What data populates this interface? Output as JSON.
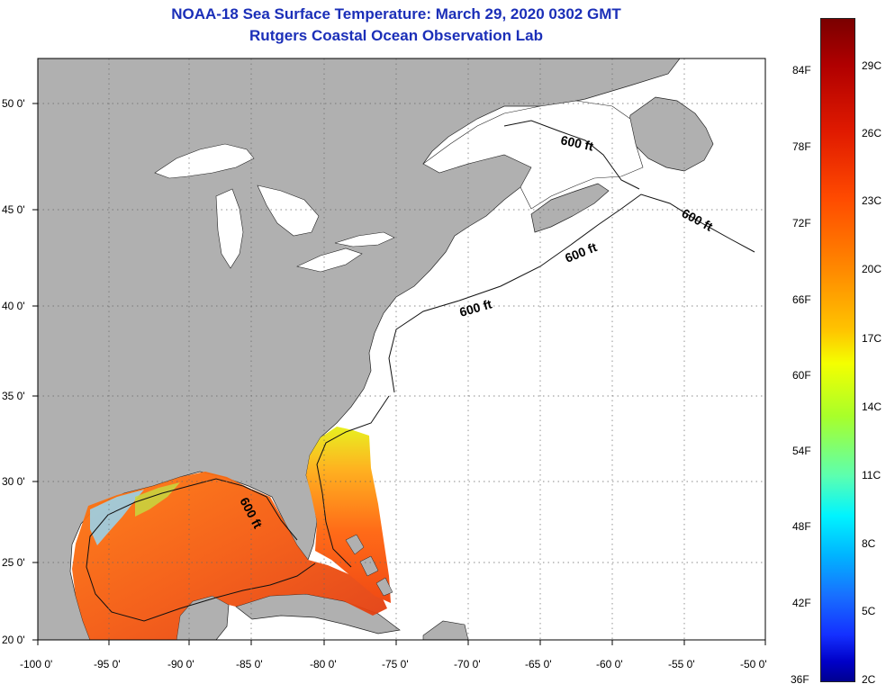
{
  "header": {
    "title": "NOAA-18 Sea Surface Temperature:  March 29, 2020 0302 GMT",
    "subtitle": "Rutgers Coastal Ocean Observation Lab"
  },
  "map": {
    "x_ticks": [
      "-100 0'",
      "-95 0'",
      "-90 0'",
      "-85 0'",
      "-80 0'",
      "-75 0'",
      "-70 0'",
      "-65 0'",
      "-60 0'",
      "-55 0'",
      "-50 0'"
    ],
    "y_ticks": [
      "50 0'",
      "45 0'",
      "40 0'",
      "35 0'",
      "30 0'",
      "25 0'",
      "20 0'"
    ],
    "contour_labels": [
      "600 ft",
      "600 ft",
      "600 ft",
      "600 ft",
      "600 ft"
    ],
    "colors": {
      "land": "#b0b0b0",
      "ocean": "#ffffff",
      "title": "#1b2fb8"
    }
  },
  "colorbar": {
    "fahrenheit": [
      "84F",
      "78F",
      "72F",
      "66F",
      "60F",
      "54F",
      "48F",
      "42F",
      "36F"
    ],
    "celsius": [
      "29C",
      "26C",
      "23C",
      "20C",
      "17C",
      "14C",
      "11C",
      "8C",
      "5C",
      "2C"
    ]
  }
}
